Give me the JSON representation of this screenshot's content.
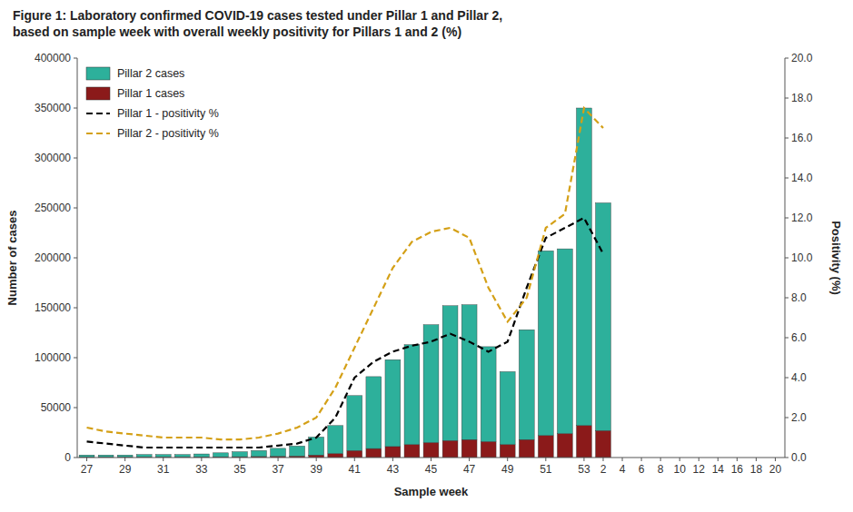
{
  "chart_data": {
    "type": "bar",
    "title": "Figure 1: Laboratory confirmed COVID-19 cases tested under Pillar 1 and Pillar 2,\nbased on sample week with overall weekly positivity for Pillars 1 and 2 (%)",
    "x_label": "Sample week",
    "y_label": "Number of cases",
    "y2_label": "Positivity (%)",
    "categories": [
      "27",
      null,
      "29",
      null,
      "31",
      null,
      "33",
      null,
      "35",
      null,
      "37",
      null,
      "39",
      null,
      "41",
      null,
      "43",
      null,
      "45",
      null,
      "47",
      null,
      "49",
      null,
      "51",
      null,
      "53",
      "2",
      "4",
      "6",
      "8",
      "10",
      "12",
      "14",
      "16",
      "18",
      "20"
    ],
    "series": [
      {
        "name": "Pillar 2 cases",
        "type": "bar",
        "color": "#2DB09B",
        "values": [
          2000,
          2000,
          2000,
          2500,
          2500,
          2500,
          3000,
          4000,
          5000,
          6000,
          8000,
          10000,
          18000,
          28000,
          55000,
          72000,
          87000,
          100000,
          118000,
          135000,
          135000,
          95000,
          73000,
          110000,
          185000,
          185000,
          318000,
          228000,
          null,
          null,
          null,
          null,
          null,
          null,
          null,
          null,
          null
        ]
      },
      {
        "name": "Pillar 1 cases",
        "type": "bar",
        "color": "#8B1A1A",
        "values": [
          500,
          500,
          500,
          500,
          500,
          500,
          600,
          700,
          800,
          1000,
          1200,
          1500,
          2500,
          4000,
          7000,
          9000,
          11000,
          13000,
          15000,
          17000,
          18000,
          16000,
          13000,
          18000,
          22000,
          24000,
          32000,
          27000,
          null,
          null,
          null,
          null,
          null,
          null,
          null,
          null,
          null
        ]
      },
      {
        "name": "Pillar 1 - positivity %",
        "type": "line",
        "axis": "y2",
        "color": "#000000",
        "line_style": "dashed",
        "values": [
          0.8,
          0.7,
          0.6,
          0.5,
          0.5,
          0.5,
          0.5,
          0.5,
          0.5,
          0.5,
          0.6,
          0.7,
          1.0,
          2.0,
          4.0,
          4.8,
          5.3,
          5.6,
          5.8,
          6.2,
          5.8,
          5.3,
          5.8,
          8.5,
          11.0,
          11.5,
          12.0,
          10.2,
          null,
          null,
          null,
          null,
          null,
          null,
          null,
          null,
          null
        ]
      },
      {
        "name": "Pillar 2 - positivity %",
        "type": "line",
        "axis": "y2",
        "color": "#D4A017",
        "line_style": "dashed",
        "values": [
          1.5,
          1.3,
          1.2,
          1.1,
          1.0,
          1.0,
          1.0,
          0.9,
          0.9,
          1.0,
          1.2,
          1.5,
          2.0,
          3.5,
          5.5,
          7.5,
          9.5,
          10.8,
          11.3,
          11.5,
          11.0,
          8.5,
          6.8,
          8.0,
          11.5,
          12.2,
          17.5,
          16.5,
          null,
          null,
          null,
          null,
          null,
          null,
          null,
          null,
          null
        ]
      }
    ],
    "stacked": true,
    "ylim": [
      0,
      400000
    ],
    "yticks": [
      0,
      50000,
      100000,
      150000,
      200000,
      250000,
      300000,
      350000,
      400000
    ],
    "y2lim": [
      0,
      20.0
    ],
    "y2ticks": [
      {
        "value": 0,
        "label": "0.0"
      },
      {
        "value": 2,
        "label": "2.0"
      },
      {
        "value": 4,
        "label": "4.0"
      },
      {
        "value": 6,
        "label": "6.0"
      },
      {
        "value": 8,
        "label": "8.0"
      },
      {
        "value": 10,
        "label": "10.0"
      },
      {
        "value": 12,
        "label": "12.0"
      },
      {
        "value": 14,
        "label": "14.0"
      },
      {
        "value": 16,
        "label": "16.0"
      },
      {
        "value": 18,
        "label": "18.0"
      },
      {
        "value": 20,
        "label": "20.0"
      }
    ],
    "grid": false,
    "legend": "upper left"
  }
}
